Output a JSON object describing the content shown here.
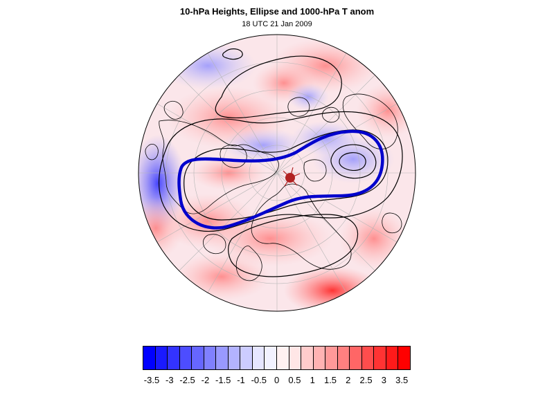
{
  "header": {
    "title": "10-hPa Heights, Ellipse and 1000-hPa T anom",
    "subtitle": "18 UTC 21 Jan 2009"
  },
  "map": {
    "projection": "north-polar-stereographic",
    "fill_variable": "1000-hPa temperature anomaly",
    "contour_variable": "10-hPa geopotential height",
    "ellipse_color": "#0000cc",
    "centroid_color": "#b22222",
    "contour_color": "#000000",
    "coastline_color": "#000000",
    "grid_color": "#b0b0b0"
  },
  "colorbar": {
    "colors": [
      "#0000ff",
      "#1a1aff",
      "#3333ff",
      "#4d4dff",
      "#6666ff",
      "#8080ff",
      "#9999ff",
      "#b3b3ff",
      "#ccccff",
      "#e6e6ff",
      "#f2f2ff",
      "#fff2f2",
      "#ffe6e6",
      "#ffcccc",
      "#ffb3b3",
      "#ff9999",
      "#ff8080",
      "#ff6666",
      "#ff4d4d",
      "#ff3333",
      "#ff1a1a",
      "#ff0000"
    ],
    "labels": [
      "-3.5",
      "-3",
      "-2.5",
      "-2",
      "-1.5",
      "-1",
      "-0.5",
      "0",
      "0.5",
      "1",
      "1.5",
      "2",
      "2.5",
      "3",
      "3.5"
    ]
  }
}
